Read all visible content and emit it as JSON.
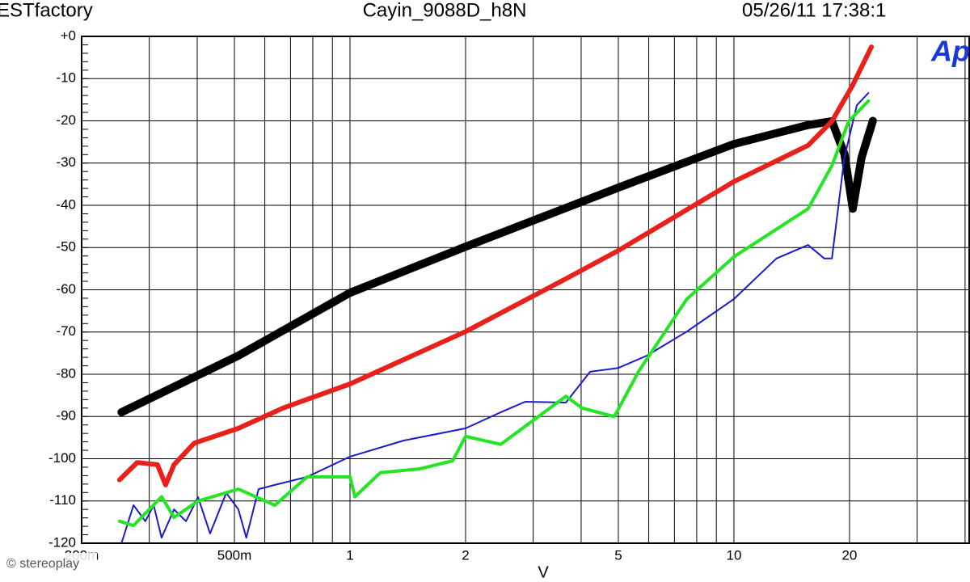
{
  "chart_data": {
    "type": "line",
    "header_left": "ESTfactory",
    "title": "Cayin_9088D_h8N",
    "header_right": "05/26/11 17:38:1",
    "logo": "Ap",
    "watermark": "© stereoplay",
    "xlabel": "V",
    "xscale": "log",
    "grid": true,
    "xlim": [
      0.2,
      41
    ],
    "ylim": [
      -120,
      0
    ],
    "xticks": [
      {
        "value": 0.2,
        "label": "200m"
      },
      {
        "value": 0.5,
        "label": "500m"
      },
      1,
      2,
      5,
      10,
      20
    ],
    "xgrid_minor": [
      0.3,
      0.4,
      0.6,
      0.7,
      0.8,
      0.9,
      3,
      4,
      6,
      7,
      8,
      9,
      30,
      40
    ],
    "yticks": [
      {
        "value": 0,
        "label": "+0"
      },
      -10,
      -20,
      -30,
      -40,
      -50,
      -60,
      -70,
      -80,
      -90,
      -100,
      -110,
      -120
    ],
    "series": [
      {
        "color": "#000000",
        "stroke_width": 10,
        "x": [
          0.254,
          0.512,
          1,
          2.0,
          5.0,
          10,
          15.6,
          18.0,
          19.4,
          20.4,
          21.5,
          23.0
        ],
        "values": [
          -89,
          -75.6,
          -60.7,
          -49.8,
          -35.8,
          -25.5,
          -21,
          -20.1,
          -27.8,
          -40.8,
          -28.7,
          -20
        ]
      },
      {
        "color": "#e8211b",
        "stroke_width": 6,
        "x": [
          0.251,
          0.279,
          0.315,
          0.331,
          0.348,
          0.393,
          0.512,
          0.669,
          1,
          2.0,
          3.65,
          5.0,
          10,
          15.6,
          18.0,
          20.4,
          22.8
        ],
        "values": [
          -105,
          -100.9,
          -101.4,
          -106.2,
          -101.4,
          -96.3,
          -92.8,
          -88,
          -82.3,
          -69.9,
          -57.4,
          -50.7,
          -34.4,
          -25.8,
          -20.1,
          -11.5,
          -2.5
        ]
      },
      {
        "color": "#1a1ad0",
        "stroke_width": 2,
        "x": [
          0.254,
          0.273,
          0.293,
          0.308,
          0.323,
          0.348,
          0.374,
          0.402,
          0.432,
          0.476,
          0.512,
          0.537,
          0.578,
          0.637,
          0.773,
          1,
          1.38,
          2.0,
          2.47,
          2.86,
          3.65,
          4.22,
          5.0,
          5.93,
          7.54,
          10,
          12.9,
          15.6,
          17.2,
          18.0,
          19.4,
          20.9,
          22.4
        ],
        "values": [
          -120,
          -111,
          -114.8,
          -111,
          -118.7,
          -112,
          -114.8,
          -109.1,
          -117.7,
          -108.1,
          -112,
          -118.7,
          -107.2,
          -106.2,
          -104.3,
          -99.5,
          -95.7,
          -92.8,
          -89,
          -86.5,
          -86.7,
          -79.4,
          -78.5,
          -75.6,
          -69.9,
          -62.2,
          -52.6,
          -49.4,
          -52.6,
          -52.6,
          -28.7,
          -16.3,
          -13.4
        ]
      },
      {
        "color": "#22e622",
        "stroke_width": 4,
        "x": [
          0.251,
          0.273,
          0.323,
          0.348,
          0.402,
          0.512,
          0.637,
          0.773,
          1,
          1.03,
          1.2,
          1.52,
          1.85,
          2.0,
          2.47,
          3.65,
          4.02,
          4.88,
          5.64,
          7.54,
          10,
          15.6,
          18.0,
          19.9,
          22.4
        ],
        "values": [
          -114.8,
          -115.8,
          -109,
          -113.9,
          -110,
          -107.2,
          -111,
          -104.3,
          -104.3,
          -109,
          -103.3,
          -102.4,
          -100.5,
          -94.7,
          -96.6,
          -85.2,
          -88,
          -90,
          -79.4,
          -62.2,
          -52.2,
          -40.8,
          -30.6,
          -20.1,
          -15.3
        ]
      }
    ]
  }
}
